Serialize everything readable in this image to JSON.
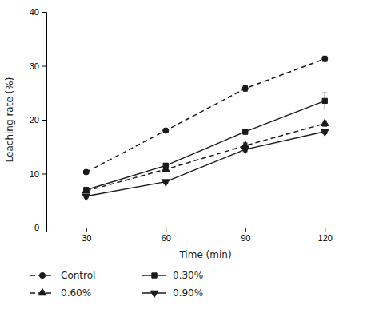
{
  "chart_data": {
    "type": "line",
    "x": [
      30,
      60,
      90,
      120
    ],
    "series": [
      {
        "name": "Control",
        "color": "#1a1a1a",
        "marker": "circle",
        "line_style": "dashed",
        "values": [
          10.3,
          18.0,
          25.8,
          31.3
        ],
        "errors": [
          0.3,
          0.3,
          0.5,
          0.5
        ]
      },
      {
        "name": "0.30%",
        "color": "#1a1a1a",
        "marker": "square",
        "line_style": "solid",
        "values": [
          7.0,
          11.5,
          17.8,
          23.5
        ],
        "errors": [
          0.3,
          0.4,
          0.5,
          1.5
        ]
      },
      {
        "name": "0.60%",
        "color": "#1a1a1a",
        "marker": "triangle-up",
        "line_style": "dashed",
        "values": [
          6.8,
          10.8,
          15.2,
          19.3
        ],
        "errors": [
          0.3,
          0.3,
          0.5,
          0.5
        ]
      },
      {
        "name": "0.90%",
        "color": "#1a1a1a",
        "marker": "triangle-down",
        "line_style": "solid",
        "values": [
          5.8,
          8.5,
          14.5,
          17.8
        ],
        "errors": [
          0.3,
          0.3,
          0.4,
          0.4
        ]
      }
    ],
    "xlabel": "Time (min)",
    "ylabel": "Leaching rate (%)",
    "xlim": [
      15,
      135
    ],
    "ylim": [
      0,
      40
    ],
    "xticks": [
      30,
      60,
      90,
      120
    ],
    "yticks": [
      0,
      10,
      20,
      30,
      40
    ],
    "grid": false,
    "legend": "bottom"
  }
}
